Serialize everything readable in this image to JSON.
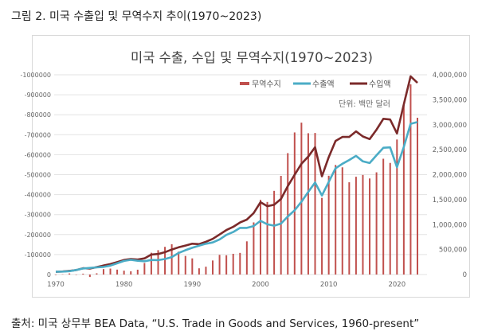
{
  "caption": "그림 2. 미국 수출입 및 무역수지 추이(1970~2023)",
  "source": "출처: 미국 상무부 BEA Data, “U.S. Trade in Goods and Services, 1960-present”",
  "chart_data": {
    "type": "bar+line",
    "title": "미국 수출, 수입 및 무역수지(1970~2023)",
    "unit_note": "단위: 백만 달러",
    "legend_position": "top-right",
    "grid": true,
    "left_axis": {
      "range": [
        0,
        -1000000
      ],
      "ticks": [
        "-1000000",
        "-900000",
        "-800000",
        "-700000",
        "-600000",
        "-500000",
        "-400000",
        "-300000",
        "-200000",
        "-100000",
        "0"
      ],
      "inverted": true
    },
    "right_axis": {
      "range": [
        0,
        4000000
      ],
      "ticks": [
        "4,000,000",
        "3,500,000",
        "3,000,000",
        "2,500,000",
        "2,000,000",
        "1,500,000",
        "1,000,000",
        "500,000",
        "0"
      ]
    },
    "x_ticks": [
      "1970",
      "1980",
      "1990",
      "2000",
      "2010",
      "2020"
    ],
    "colors": {
      "balance": "#C0504D",
      "exports": "#4BACC6",
      "imports": "#7B2A2A"
    },
    "x": [
      1970,
      1971,
      1972,
      1973,
      1974,
      1975,
      1976,
      1977,
      1978,
      1979,
      1980,
      1981,
      1982,
      1983,
      1984,
      1985,
      1986,
      1987,
      1988,
      1989,
      1990,
      1991,
      1992,
      1993,
      1994,
      1995,
      1996,
      1997,
      1998,
      1999,
      2000,
      2001,
      2002,
      2003,
      2004,
      2005,
      2006,
      2007,
      2008,
      2009,
      2010,
      2011,
      2012,
      2013,
      2014,
      2015,
      2016,
      2017,
      2018,
      2019,
      2020,
      2021,
      2022,
      2023
    ],
    "series": [
      {
        "name": "무역수지",
        "axis": "left",
        "kind": "bar",
        "values": [
          2254,
          -1342,
          -5443,
          1900,
          -4293,
          12404,
          -6082,
          -27246,
          -29763,
          -24565,
          -19407,
          -16172,
          -24155,
          -57768,
          -109072,
          -121880,
          -138539,
          -151683,
          -114566,
          -93141,
          -80864,
          -31135,
          -39212,
          -70311,
          -98493,
          -96384,
          -103752,
          -108273,
          -166140,
          -261103,
          -374056,
          -363351,
          -418954,
          -493890,
          -607792,
          -711420,
          -760452,
          -707435,
          -708727,
          -383908,
          -494657,
          -548625,
          -536773,
          -461832,
          -489584,
          -498563,
          -480992,
          -511714,
          -579740,
          -558773,
          -676000,
          -851629,
          -951989,
          -784958
        ]
      },
      {
        "name": "수출액",
        "axis": "right",
        "kind": "line",
        "values": [
          56640,
          59677,
          67222,
          91242,
          120897,
          132585,
          142716,
          152301,
          178428,
          224131,
          271834,
          294398,
          275236,
          266106,
          291094,
          289070,
          310033,
          348869,
          431149,
          487003,
          535233,
          578344,
          616882,
          642863,
          703254,
          794387,
          851602,
          934453,
          933174,
          969867,
          1075321,
          1005654,
          978706,
          1020418,
          1161549,
          1286022,
          1457642,
          1653548,
          1841612,
          1583053,
          1853606,
          2127021,
          2218989,
          2293457,
          2376657,
          2266654,
          2232139,
          2388314,
          2539383,
          2546275,
          2150134,
          2558149,
          3018427,
          3053513
        ]
      },
      {
        "name": "수입액",
        "axis": "right",
        "kind": "line",
        "values": [
          54386,
          61019,
          72665,
          89342,
          125190,
          120181,
          148798,
          179547,
          208191,
          248696,
          291241,
          310570,
          299391,
          323874,
          400166,
          410950,
          448572,
          500552,
          545715,
          580144,
          616097,
          609479,
          656094,
          713174,
          801747,
          890771,
          955354,
          1042726,
          1099314,
          1230970,
          1449377,
          1369005,
          1397660,
          1514308,
          1769341,
          1997442,
          2218094,
          2360983,
          2550339,
          1966961,
          2348263,
          2675646,
          2755762,
          2755289,
          2866241,
          2765217,
          2713131,
          2900028,
          3119123,
          3105048,
          2826134,
          3409778,
          3970416,
          3838471
        ]
      }
    ]
  }
}
